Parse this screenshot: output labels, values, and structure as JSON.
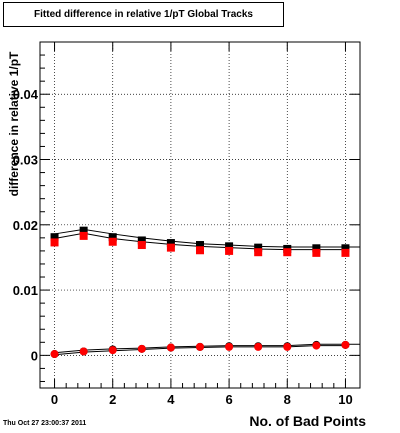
{
  "title": "Fitted difference in relative 1/pT  Global Tracks",
  "timestamp": "Thu Oct 27 23:00:37 2011",
  "chart_data": {
    "type": "scatter",
    "xlabel": "No. of Bad Points",
    "ylabel": "difference in relative 1/pT",
    "xlim": [
      -0.5,
      10.5
    ],
    "ylim": [
      -0.005,
      0.048
    ],
    "x_ticks": [
      0,
      2,
      4,
      6,
      8,
      10
    ],
    "y_ticks": [
      0,
      0.01,
      0.02,
      0.03,
      0.04
    ],
    "y_tick_labels": [
      "0",
      "0.01",
      "0.02",
      "0.03",
      "0.04"
    ],
    "grid": true,
    "series": [
      {
        "marker": "square",
        "color": "#000000",
        "x": [
          0,
          1,
          2,
          3,
          4,
          5,
          6,
          7,
          8,
          9,
          10
        ],
        "y": [
          0.0181,
          0.0191,
          0.0181,
          0.0176,
          0.0172,
          0.0169,
          0.0167,
          0.0165,
          0.0163,
          0.0164,
          0.0164
        ]
      },
      {
        "marker": "square",
        "color": "#ff0000",
        "x": [
          0,
          1,
          2,
          3,
          4,
          5,
          6,
          7,
          8,
          9,
          10
        ],
        "y": [
          0.0173,
          0.0183,
          0.0174,
          0.0169,
          0.0165,
          0.0161,
          0.016,
          0.0158,
          0.0158,
          0.0157,
          0.0157
        ]
      },
      {
        "marker": "circle",
        "color": "#000000",
        "x": [
          0,
          1,
          2,
          3,
          4,
          5,
          6,
          7,
          8,
          9,
          10
        ],
        "y": [
          0.0002,
          0.0006,
          0.0009,
          0.001,
          0.0012,
          0.0013,
          0.0014,
          0.0014,
          0.0014,
          0.0016,
          0.0016
        ]
      },
      {
        "marker": "circle",
        "color": "#ff0000",
        "x": [
          0,
          1,
          2,
          3,
          4,
          5,
          6,
          7,
          8,
          9,
          10
        ],
        "y": [
          0.0002,
          0.0006,
          0.0008,
          0.001,
          0.0012,
          0.0013,
          0.0013,
          0.0013,
          0.0013,
          0.0015,
          0.0016
        ]
      }
    ],
    "fit_bands": [
      {
        "color": "#000000",
        "upper": [
          0.0186,
          0.0193,
          0.0186,
          0.018,
          0.0175,
          0.0171,
          0.0169,
          0.0167,
          0.0166,
          0.0166,
          0.0166
        ],
        "lower": [
          0.0179,
          0.0187,
          0.0179,
          0.0174,
          0.017,
          0.0167,
          0.0165,
          0.0163,
          0.0162,
          0.0162,
          0.0162
        ]
      },
      {
        "color": "#000000",
        "upper": [
          0.0004,
          0.0008,
          0.001,
          0.0011,
          0.0013,
          0.0014,
          0.0015,
          0.0015,
          0.0015,
          0.0017,
          0.0017
        ],
        "lower": [
          0.0001,
          0.0005,
          0.0007,
          0.0009,
          0.0011,
          0.0012,
          0.0013,
          0.0013,
          0.0013,
          0.0015,
          0.0015
        ]
      }
    ]
  }
}
